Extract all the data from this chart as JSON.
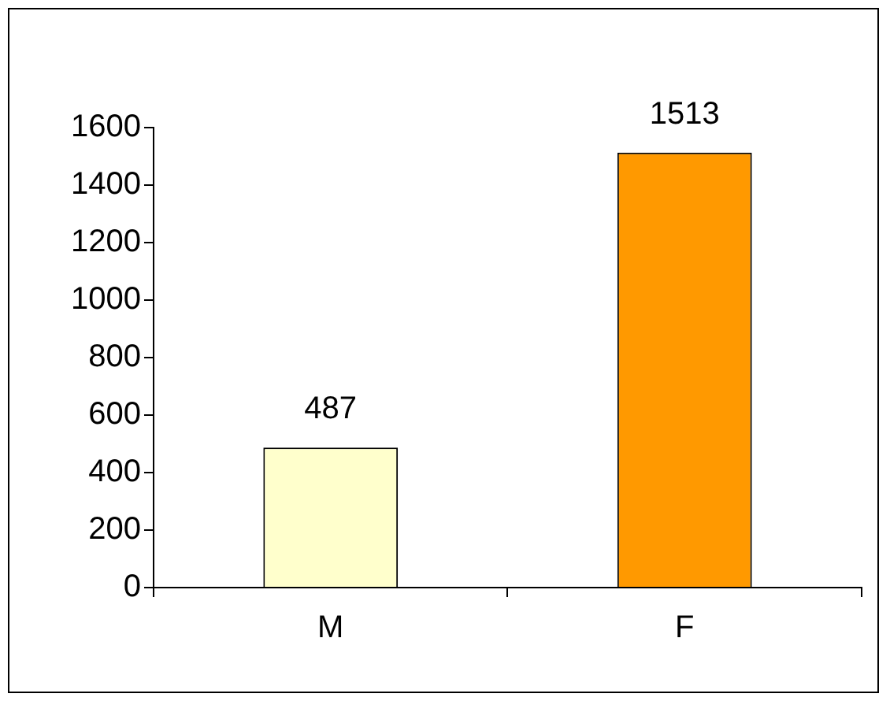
{
  "chart_data": {
    "type": "bar",
    "categories": [
      "M",
      "F"
    ],
    "values": [
      487,
      1513
    ],
    "colors": [
      "#ffffcc",
      "#ff9900"
    ],
    "ylim": [
      0,
      1600
    ],
    "yticks": [
      0,
      200,
      400,
      600,
      800,
      1000,
      1200,
      1400,
      1600
    ],
    "grid": false,
    "legend": false,
    "data_labels": true
  }
}
